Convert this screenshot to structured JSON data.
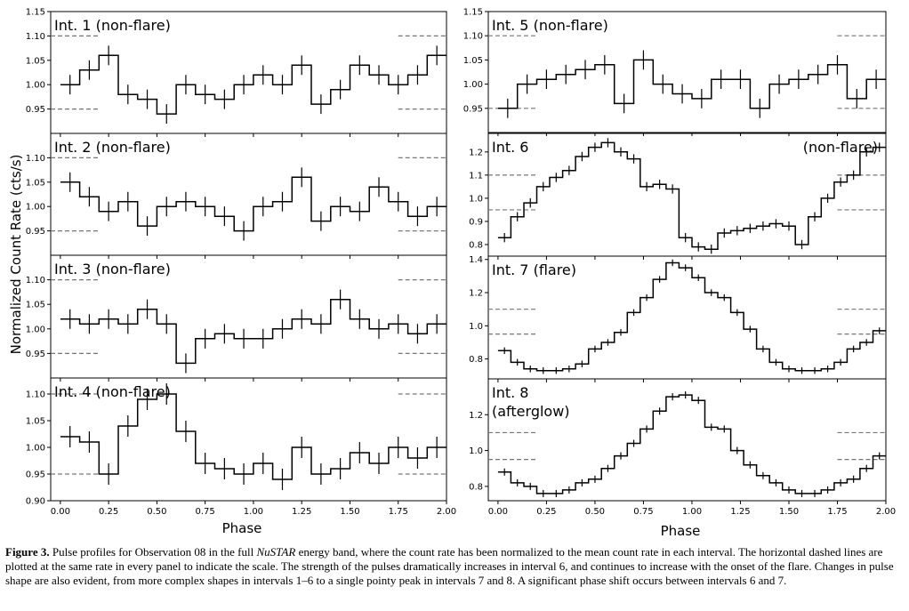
{
  "figure": {
    "ylabel": "Normalized Count Rate (cts/s)",
    "xlabel": "Phase",
    "dashed_levels": [
      0.95,
      1.1
    ]
  },
  "caption": {
    "label": "Figure 3.",
    "text_before": " Pulse profiles for Observation 08 in the full ",
    "italic": "NuSTAR",
    "text_after": " energy band, where the count rate has been normalized to the mean count rate in each interval. The horizontal dashed lines are plotted at the same rate in every panel to indicate the scale. The strength of the pulses dramatically increases in interval 6, and continues to increase with the onset of the flare. Changes in pulse shape are also evident, from more complex shapes in intervals 1–6 to a single pointy peak in intervals 7 and 8. A significant phase shift occurs between intervals 6 and 7."
  },
  "chart_data": [
    {
      "type": "line",
      "label": "Int. 1 (non-flare)",
      "label2": "",
      "xlim": [
        -0.05,
        2.0
      ],
      "ylim": [
        0.9,
        1.15
      ],
      "yticks": [
        "0.95",
        "1.00",
        "1.05",
        "1.10",
        "1.15"
      ],
      "ytick_values": [
        0.95,
        1.0,
        1.05,
        1.1,
        1.15
      ],
      "xticks": [],
      "bins": 20,
      "values": [
        1.0,
        1.03,
        1.06,
        0.98,
        0.97,
        0.94,
        1.0,
        0.98,
        0.97,
        1.0,
        1.02,
        1.0,
        1.04,
        0.96,
        0.99,
        1.04,
        1.02,
        1.0,
        1.02,
        1.06
      ],
      "errors": 0.02
    },
    {
      "type": "line",
      "label": "Int. 2 (non-flare)",
      "label2": "",
      "xlim": [
        -0.05,
        2.0
      ],
      "ylim": [
        0.9,
        1.15
      ],
      "yticks": [
        "0.95",
        "1.00",
        "1.05",
        "1.10"
      ],
      "ytick_values": [
        0.95,
        1.0,
        1.05,
        1.1
      ],
      "xticks": [],
      "bins": 20,
      "values": [
        1.05,
        1.02,
        0.99,
        1.01,
        0.96,
        1.0,
        1.01,
        1.0,
        0.98,
        0.95,
        1.0,
        1.01,
        1.06,
        0.97,
        1.0,
        0.99,
        1.04,
        1.01,
        0.98,
        1.0
      ],
      "errors": 0.02
    },
    {
      "type": "line",
      "label": "Int. 3 (non-flare)",
      "label2": "",
      "xlim": [
        -0.05,
        2.0
      ],
      "ylim": [
        0.9,
        1.15
      ],
      "yticks": [
        "0.95",
        "1.00",
        "1.05",
        "1.10"
      ],
      "ytick_values": [
        0.95,
        1.0,
        1.05,
        1.1
      ],
      "xticks": [],
      "bins": 20,
      "values": [
        1.02,
        1.01,
        1.02,
        1.01,
        1.04,
        1.01,
        0.93,
        0.98,
        0.99,
        0.98,
        0.98,
        1.0,
        1.02,
        1.01,
        1.06,
        1.02,
        1.0,
        1.01,
        0.99,
        1.01
      ],
      "errors": 0.02
    },
    {
      "type": "line",
      "label": "Int. 4 (non-flare)",
      "label2": "",
      "xlim": [
        -0.05,
        2.0
      ],
      "ylim": [
        0.9,
        1.13
      ],
      "yticks": [
        "0.90",
        "0.95",
        "1.00",
        "1.05",
        "1.10"
      ],
      "ytick_values": [
        0.9,
        0.95,
        1.0,
        1.05,
        1.1
      ],
      "xticks": [
        "0.00",
        "0.25",
        "0.50",
        "0.75",
        "1.00",
        "1.25",
        "1.50",
        "1.75",
        "2.00"
      ],
      "bins": 20,
      "values": [
        1.02,
        1.01,
        0.95,
        1.04,
        1.09,
        1.1,
        1.03,
        0.97,
        0.96,
        0.95,
        0.97,
        0.94,
        1.0,
        0.95,
        0.96,
        0.99,
        0.97,
        1.0,
        0.98,
        1.0
      ],
      "errors": 0.02
    },
    {
      "type": "line",
      "label": "Int. 5 (non-flare)",
      "label2": "",
      "xlim": [
        -0.05,
        2.0
      ],
      "ylim": [
        0.9,
        1.15
      ],
      "yticks": [
        "0.95",
        "1.00",
        "1.05",
        "1.10",
        "1.15"
      ],
      "ytick_values": [
        0.95,
        1.0,
        1.05,
        1.1,
        1.15
      ],
      "xticks": [],
      "bins": 20,
      "values": [
        0.95,
        1.0,
        1.01,
        1.02,
        1.03,
        1.04,
        0.96,
        1.05,
        1.0,
        0.98,
        0.97,
        1.01,
        1.01,
        0.95,
        1.0,
        1.01,
        1.02,
        1.04,
        0.97,
        1.01
      ],
      "errors": 0.02
    },
    {
      "type": "line",
      "label": "Int. 6",
      "label2": "(non-flare)",
      "xlim": [
        -0.05,
        2.0
      ],
      "ylim": [
        0.75,
        1.28
      ],
      "yticks": [
        "0.8",
        "0.9",
        "1.0",
        "1.1",
        "1.2"
      ],
      "ytick_values": [
        0.8,
        0.9,
        1.0,
        1.1,
        1.2
      ],
      "xticks": [],
      "bins": 30,
      "values": [
        0.83,
        0.92,
        0.98,
        1.05,
        1.09,
        1.12,
        1.18,
        1.22,
        1.24,
        1.2,
        1.17,
        1.05,
        1.06,
        1.04,
        0.83,
        0.79,
        0.78,
        0.85,
        0.86,
        0.87,
        0.88,
        0.89,
        0.88,
        0.8,
        0.92,
        1.0,
        1.07,
        1.1,
        1.2,
        1.22
      ],
      "errors": 0.02
    },
    {
      "type": "line",
      "label": "Int. 7 (flare)",
      "label2": "",
      "xlim": [
        -0.05,
        2.0
      ],
      "ylim": [
        0.68,
        1.42
      ],
      "yticks": [
        "0.8",
        "1.0",
        "1.2",
        "1.4"
      ],
      "ytick_values": [
        0.8,
        1.0,
        1.2,
        1.4
      ],
      "xticks": [],
      "bins": 30,
      "values": [
        0.85,
        0.78,
        0.74,
        0.73,
        0.73,
        0.74,
        0.77,
        0.86,
        0.9,
        0.96,
        1.08,
        1.17,
        1.28,
        1.38,
        1.35,
        1.29,
        1.2,
        1.17,
        1.08,
        0.98,
        0.86,
        0.78,
        0.74,
        0.73,
        0.73,
        0.74,
        0.78,
        0.86,
        0.9,
        0.97
      ],
      "errors": 0.02
    },
    {
      "type": "line",
      "label": "Int. 8",
      "label2": "(afterglow)",
      "xlim": [
        -0.05,
        2.0
      ],
      "ylim": [
        0.72,
        1.4
      ],
      "yticks": [
        "0.8",
        "1.0",
        "1.2"
      ],
      "ytick_values": [
        0.8,
        1.0,
        1.2
      ],
      "xticks": [
        "0.00",
        "0.25",
        "0.50",
        "0.75",
        "1.00",
        "1.25",
        "1.50",
        "1.75",
        "2.00"
      ],
      "bins": 30,
      "values": [
        0.88,
        0.82,
        0.8,
        0.76,
        0.76,
        0.78,
        0.82,
        0.84,
        0.9,
        0.97,
        1.04,
        1.12,
        1.22,
        1.3,
        1.31,
        1.28,
        1.13,
        1.12,
        1.0,
        0.92,
        0.86,
        0.82,
        0.78,
        0.76,
        0.76,
        0.78,
        0.82,
        0.84,
        0.9,
        0.97
      ],
      "errors": 0.02
    }
  ]
}
